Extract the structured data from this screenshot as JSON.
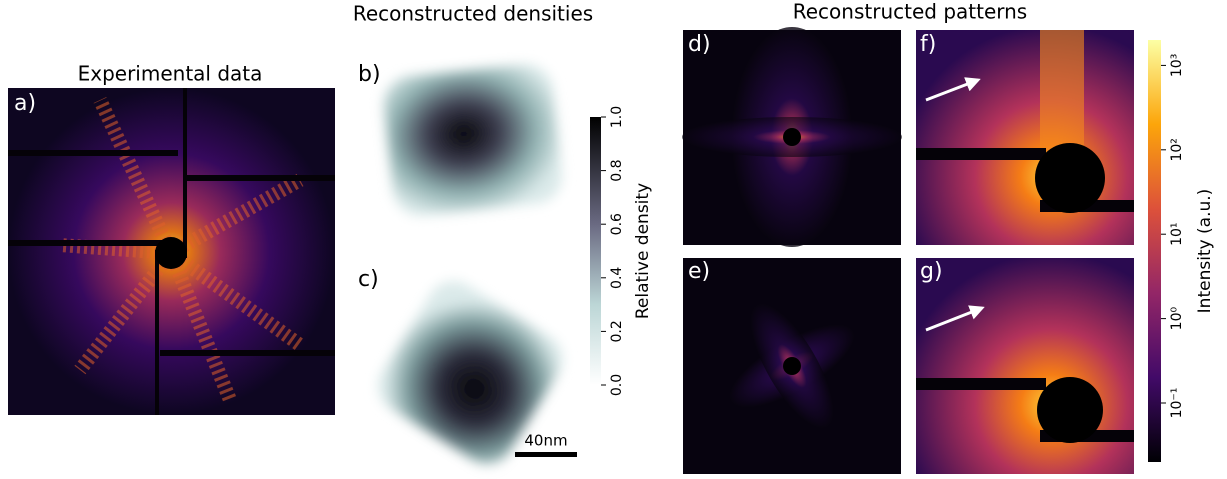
{
  "figure": {
    "panels": [
      {
        "title": "Experimental data",
        "label": "a)"
      },
      {
        "title": "Reconstructed densities",
        "labels": [
          "b)",
          "c)"
        ]
      },
      {
        "title": "Reconstructed patterns",
        "labels": [
          "d)",
          "e)",
          "f)",
          "g)"
        ]
      }
    ],
    "scale_bar": "40nm",
    "density_colorbar": {
      "label": "Relative density",
      "lim": [
        0,
        1
      ],
      "ticks": [
        {
          "value": 0,
          "label": "0.0"
        },
        {
          "value": 0.2,
          "label": "0.2"
        },
        {
          "value": 0.4,
          "label": "0.4"
        },
        {
          "value": 0.6,
          "label": "0.6"
        },
        {
          "value": 0.8,
          "label": "0.8"
        },
        {
          "value": 1,
          "label": "1.0"
        }
      ]
    },
    "intensity_colorbar": {
      "label": "Intensity (a.u.)",
      "lim": [
        0.02,
        2000
      ],
      "log_scale": true,
      "ticks": [
        {
          "value": 0.1,
          "label": "10⁻¹"
        },
        {
          "value": 1,
          "label": "10⁰"
        },
        {
          "value": 10,
          "label": "10¹"
        },
        {
          "value": 100,
          "label": "10²"
        },
        {
          "value": 1000,
          "label": "10³"
        }
      ]
    }
  }
}
